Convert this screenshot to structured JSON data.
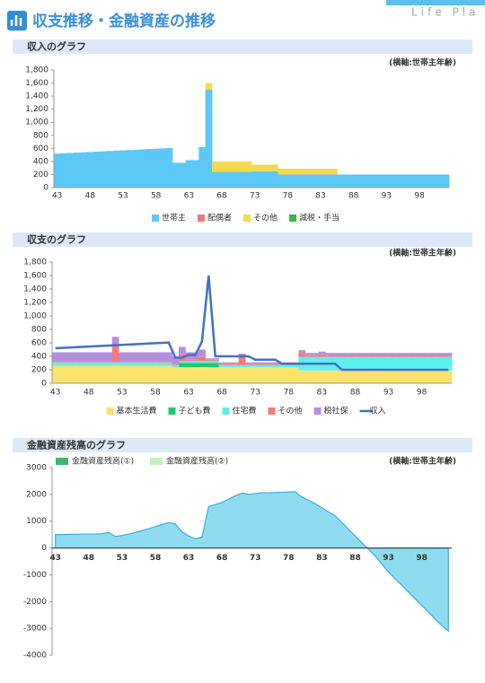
{
  "header": {
    "title": "収支推移・金融資産の推移",
    "brand": "Life Pla"
  },
  "chart_data": [
    {
      "type": "bar",
      "stacked": true,
      "section_title": "収入のグラフ",
      "axis_note": "(横軸:世帯主年齢)",
      "categories": [
        43,
        null,
        null,
        null,
        null,
        48,
        null,
        null,
        null,
        null,
        53,
        null,
        null,
        null,
        null,
        58,
        null,
        null,
        null,
        null,
        63,
        null,
        null,
        null,
        null,
        68,
        null,
        null,
        null,
        null,
        73,
        null,
        null,
        null,
        null,
        78,
        null,
        null,
        null,
        null,
        83,
        null,
        null,
        null,
        null,
        88,
        null,
        null,
        null,
        null,
        93,
        null,
        null,
        null,
        null,
        98,
        null,
        null,
        null,
        null
      ],
      "ylim": [
        0,
        1800
      ],
      "yticks": [
        0,
        200,
        400,
        600,
        800,
        {
          "value": 1000,
          "label": "1,000"
        },
        {
          "value": 1200,
          "label": "1,200"
        },
        {
          "value": 1400,
          "label": "1,400"
        },
        {
          "value": 1600,
          "label": "1,600"
        },
        {
          "value": 1800,
          "label": "1,800"
        }
      ],
      "grid": false,
      "series": [
        {
          "name": "世帯主",
          "color": "#5bc8f5",
          "values": [
            520,
            525,
            530,
            535,
            540,
            545,
            550,
            555,
            560,
            565,
            570,
            575,
            580,
            585,
            590,
            595,
            600,
            605,
            380,
            380,
            420,
            420,
            620,
            1500,
            240,
            240,
            240,
            240,
            240,
            240,
            250,
            250,
            250,
            250,
            200,
            200,
            200,
            200,
            200,
            200,
            200,
            200,
            200,
            200,
            200,
            200,
            200,
            200,
            200,
            200,
            200,
            200,
            200,
            200,
            200,
            200,
            200,
            200,
            200,
            200
          ]
        },
        {
          "name": "配偶者",
          "color": "#f07b7b",
          "values": [
            0,
            0,
            0,
            0,
            0,
            0,
            0,
            0,
            0,
            0,
            0,
            0,
            0,
            0,
            0,
            0,
            0,
            0,
            0,
            0,
            0,
            0,
            0,
            0,
            0,
            0,
            0,
            0,
            0,
            0,
            0,
            0,
            0,
            0,
            0,
            0,
            0,
            0,
            0,
            0,
            0,
            0,
            0,
            0,
            0,
            0,
            0,
            0,
            0,
            0,
            0,
            0,
            0,
            0,
            0,
            0,
            0,
            0,
            0,
            0
          ]
        },
        {
          "name": "その他",
          "color": "#f5d94e",
          "values": [
            0,
            0,
            0,
            0,
            0,
            0,
            0,
            0,
            0,
            0,
            0,
            0,
            0,
            0,
            0,
            0,
            0,
            0,
            0,
            0,
            0,
            0,
            0,
            100,
            160,
            160,
            160,
            160,
            160,
            160,
            100,
            100,
            100,
            100,
            90,
            90,
            90,
            90,
            90,
            90,
            90,
            90,
            90,
            0,
            0,
            0,
            0,
            0,
            0,
            0,
            0,
            0,
            0,
            0,
            0,
            0,
            0,
            0,
            0,
            0
          ]
        },
        {
          "name": "減税・手当",
          "color": "#3cb44b",
          "values": [
            0,
            0,
            0,
            0,
            0,
            0,
            0,
            0,
            0,
            0,
            0,
            0,
            0,
            0,
            0,
            0,
            0,
            0,
            0,
            0,
            0,
            0,
            0,
            0,
            0,
            0,
            0,
            0,
            0,
            0,
            0,
            0,
            0,
            0,
            0,
            0,
            0,
            0,
            0,
            0,
            0,
            0,
            0,
            0,
            0,
            0,
            0,
            0,
            0,
            0,
            0,
            0,
            0,
            0,
            0,
            0,
            0,
            0,
            0,
            0
          ]
        }
      ]
    },
    {
      "type": "bar",
      "stacked": true,
      "section_title": "収支のグラフ",
      "axis_note": "(横軸:世帯主年齢)",
      "categories": [
        43,
        null,
        null,
        null,
        null,
        48,
        null,
        null,
        null,
        null,
        53,
        null,
        null,
        null,
        null,
        58,
        null,
        null,
        null,
        null,
        63,
        null,
        null,
        null,
        null,
        68,
        null,
        null,
        null,
        null,
        73,
        null,
        null,
        null,
        null,
        78,
        null,
        null,
        null,
        null,
        83,
        null,
        null,
        null,
        null,
        88,
        null,
        null,
        null,
        null,
        93,
        null,
        null,
        null,
        null,
        98,
        null,
        null,
        null,
        null
      ],
      "ylim": [
        0,
        1800
      ],
      "yticks": [
        0,
        200,
        400,
        600,
        800,
        {
          "value": 1000,
          "label": "1,000"
        },
        {
          "value": 1200,
          "label": "1,200"
        },
        {
          "value": 1400,
          "label": "1,400"
        },
        {
          "value": 1600,
          "label": "1,600"
        },
        {
          "value": 1800,
          "label": "1,800"
        }
      ],
      "grid": false,
      "series": [
        {
          "name": "基本生活費",
          "color": "#f9e36b",
          "values": [
            260,
            260,
            260,
            260,
            260,
            260,
            260,
            260,
            260,
            260,
            260,
            260,
            260,
            260,
            260,
            260,
            260,
            260,
            240,
            240,
            240,
            240,
            240,
            240,
            240,
            240,
            240,
            240,
            240,
            240,
            240,
            240,
            240,
            240,
            240,
            240,
            240,
            190,
            190,
            190,
            190,
            190,
            190,
            190,
            190,
            190,
            190,
            190,
            190,
            190,
            190,
            190,
            190,
            190,
            190,
            190,
            190,
            190,
            190,
            190
          ]
        },
        {
          "name": "子ども費",
          "color": "#1ec86e",
          "values": [
            0,
            0,
            0,
            0,
            0,
            0,
            0,
            0,
            0,
            0,
            0,
            0,
            0,
            0,
            0,
            0,
            0,
            0,
            0,
            60,
            60,
            60,
            60,
            60,
            60,
            0,
            0,
            0,
            0,
            0,
            0,
            0,
            0,
            0,
            0,
            0,
            0,
            0,
            0,
            0,
            0,
            0,
            0,
            0,
            0,
            0,
            0,
            0,
            0,
            0,
            0,
            0,
            0,
            0,
            0,
            0,
            0,
            0,
            0,
            0
          ]
        },
        {
          "name": "住宅費",
          "color": "#5ef0f0",
          "values": [
            50,
            50,
            50,
            50,
            50,
            50,
            50,
            50,
            50,
            50,
            50,
            50,
            50,
            50,
            50,
            50,
            50,
            50,
            30,
            30,
            30,
            30,
            30,
            30,
            30,
            30,
            30,
            30,
            30,
            30,
            30,
            30,
            30,
            30,
            30,
            30,
            30,
            200,
            200,
            200,
            200,
            200,
            200,
            200,
            200,
            200,
            200,
            200,
            200,
            200,
            200,
            200,
            200,
            200,
            200,
            200,
            200,
            200,
            200,
            200
          ]
        },
        {
          "name": "その他",
          "color": "#f57a7a",
          "values": [
            20,
            20,
            20,
            20,
            20,
            20,
            20,
            20,
            20,
            250,
            20,
            20,
            20,
            20,
            20,
            20,
            20,
            20,
            20,
            100,
            20,
            20,
            60,
            20,
            20,
            20,
            20,
            20,
            150,
            20,
            20,
            20,
            20,
            20,
            20,
            20,
            20,
            60,
            20,
            20,
            40,
            20,
            20,
            20,
            20,
            20,
            20,
            20,
            20,
            20,
            20,
            20,
            20,
            20,
            20,
            20,
            20,
            20,
            20,
            20
          ]
        },
        {
          "name": "税社保",
          "color": "#b68ee0",
          "values": [
            130,
            130,
            130,
            130,
            130,
            130,
            130,
            130,
            130,
            130,
            130,
            130,
            130,
            130,
            130,
            130,
            130,
            130,
            110,
            110,
            110,
            110,
            110,
            20,
            20,
            20,
            20,
            20,
            20,
            20,
            20,
            20,
            20,
            20,
            20,
            20,
            20,
            40,
            40,
            40,
            40,
            40,
            40,
            40,
            40,
            40,
            40,
            40,
            40,
            40,
            40,
            40,
            40,
            40,
            40,
            40,
            40,
            40,
            40,
            40
          ]
        },
        {
          "name": "収入",
          "color": "#4470c4",
          "type": "line",
          "values": [
            520,
            525,
            530,
            535,
            540,
            545,
            550,
            555,
            560,
            565,
            570,
            575,
            580,
            585,
            590,
            595,
            600,
            605,
            380,
            380,
            420,
            420,
            620,
            1600,
            400,
            400,
            400,
            400,
            400,
            400,
            350,
            350,
            350,
            350,
            290,
            290,
            290,
            290,
            290,
            290,
            290,
            290,
            290,
            200,
            200,
            200,
            200,
            200,
            200,
            200,
            200,
            200,
            200,
            200,
            200,
            200,
            200,
            200,
            200,
            200
          ]
        }
      ]
    },
    {
      "type": "area",
      "section_title": "金融資産残高のグラフ",
      "axis_note": "(横軸:世帯主年齢)",
      "categories": [
        43,
        null,
        null,
        null,
        null,
        48,
        null,
        null,
        null,
        null,
        53,
        null,
        null,
        null,
        null,
        58,
        null,
        null,
        null,
        null,
        63,
        null,
        null,
        null,
        null,
        68,
        null,
        null,
        null,
        null,
        73,
        null,
        null,
        null,
        null,
        78,
        null,
        null,
        null,
        null,
        83,
        null,
        null,
        null,
        null,
        88,
        null,
        null,
        null,
        null,
        93,
        null,
        null,
        null,
        null,
        98,
        null,
        null,
        null,
        null
      ],
      "ylim": [
        -4000,
        3000
      ],
      "yticks": [
        -4000,
        -3000,
        -2000,
        -1000,
        0,
        1000,
        2000,
        3000
      ],
      "grid": false,
      "color": "#8fdcf0",
      "legend": [
        {
          "name": "金融資産残高(①)",
          "color": "#3cb878"
        },
        {
          "name": "金融資産残高(②)",
          "color": "#c3f0c0"
        }
      ],
      "values": [
        500,
        500,
        510,
        510,
        520,
        520,
        520,
        530,
        580,
        430,
        470,
        520,
        580,
        650,
        720,
        800,
        880,
        950,
        900,
        600,
        450,
        350,
        400,
        1550,
        1620,
        1700,
        1820,
        1950,
        2050,
        2000,
        2030,
        2060,
        2060,
        2070,
        2080,
        2090,
        2100,
        1900,
        1780,
        1650,
        1500,
        1350,
        1200,
        950,
        700,
        450,
        200,
        -50,
        -300,
        -600,
        -900,
        -1150,
        -1400,
        -1650,
        -1900,
        -2150,
        -2400,
        -2650,
        -2900,
        -3100
      ]
    }
  ]
}
